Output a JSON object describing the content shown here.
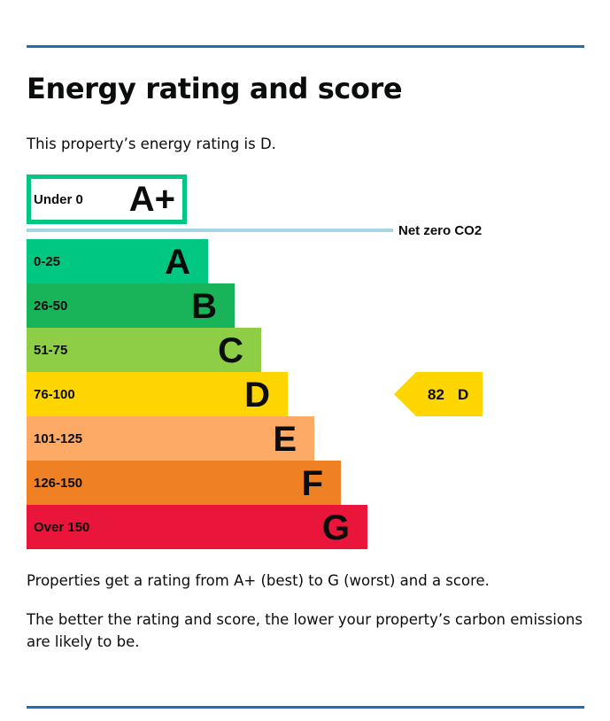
{
  "page": {
    "title": "Energy rating and score",
    "intro": "This property’s energy rating is D.",
    "info_paragraphs": [
      "Properties get a rating from A+ (best) to G (worst) and a score.",
      "The better the rating and score, the lower your property’s carbon emissions are likely to be."
    ]
  },
  "chart_data": {
    "type": "bar",
    "orientation": "horizontal",
    "bands": [
      {
        "range": "Under 0",
        "letter": "A+",
        "color": "#ffffff",
        "border": "#00c781",
        "style": "outlined"
      },
      {
        "range": "0-25",
        "letter": "A",
        "color": "#00c781"
      },
      {
        "range": "26-50",
        "letter": "B",
        "color": "#19b459"
      },
      {
        "range": "51-75",
        "letter": "C",
        "color": "#8dce46"
      },
      {
        "range": "76-100",
        "letter": "D",
        "color": "#ffd500"
      },
      {
        "range": "101-125",
        "letter": "E",
        "color": "#fcaa65"
      },
      {
        "range": "126-150",
        "letter": "F",
        "color": "#ef8023"
      },
      {
        "range": "Over 150",
        "letter": "G",
        "color": "#e9153b"
      }
    ],
    "net_zero_label": "Net zero CO2",
    "net_zero_line_color": "#a8d5e2",
    "current": {
      "score": 82,
      "letter": "D",
      "band_index": 4,
      "color": "#ffd500"
    }
  },
  "colors": {
    "rule": "#1d70b8",
    "text": "#0b0c0c"
  }
}
